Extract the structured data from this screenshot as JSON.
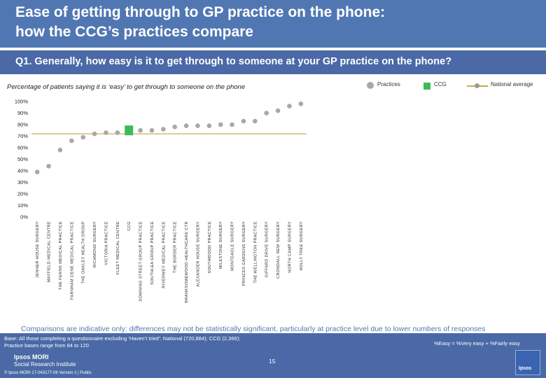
{
  "header": {
    "title_line1": "Ease of getting through to GP practice on the phone:",
    "title_line2": "how the CCG’s practices compare",
    "question": "Q1. Generally, how easy is it to get through to someone at your GP practice on the phone?"
  },
  "chart_subtitle": "Percentage of patients saying it is ‘easy’ to get through to someone on the phone",
  "legend": {
    "practices": "Practices",
    "ccg": "CCG",
    "national": "National average"
  },
  "colors": {
    "header_bg": "#5177b3",
    "practice_dot": "#a8a8a8",
    "ccg_square": "#3cba5a",
    "national_line": "#c4a84d"
  },
  "chart_data": {
    "type": "scatter",
    "title": "",
    "xlabel": "",
    "ylabel": "",
    "ylim": [
      0,
      100
    ],
    "yticks": [
      "0%",
      "10%",
      "20%",
      "30%",
      "40%",
      "50%",
      "60%",
      "70%",
      "80%",
      "90%",
      "100%"
    ],
    "national_average": 72,
    "categories": [
      "JENNER HOUSE SURGERY",
      "MAYFIELD MEDICAL CENTRE",
      "THE FERNS MEDICAL PRACTICE",
      "FARNHAM DENE MEDICAL PRACTICE",
      "THE OAKLEY HEALTH GROUP",
      "RICHMOND SURGERY",
      "VICTORIA PRACTICE",
      "FLEET MEDICAL CENTRE",
      "CCG",
      "DOWNING STREET GROUP PRACTICE",
      "SOUTHLEA GROUP PRACTICE",
      "RIVERWEY MEDICAL PRACTICE",
      "THE BORDER PRACTICE",
      "BRANKSOMEWOOD HEALTHCARE CTR",
      "ALEXANDER HOUSE SURGERY",
      "SOUTHWOOD PRACTICE",
      "MILESTONE SURGERY",
      "MONTEAGLE SURGERY",
      "PRINCES GARDENS SURGERY",
      "THE WELLINGTON PRACTICE",
      "GIFFARD DRIVE SURGERY",
      "CRONDALL NEW SURGERY",
      "NORTH CAMP SURGERY",
      "HOLLY TREE SURGERY"
    ],
    "values": [
      39,
      44,
      58,
      66,
      69,
      72,
      73,
      73,
      75,
      75,
      75,
      76,
      78,
      79,
      79,
      79,
      80,
      80,
      83,
      83,
      90,
      92,
      96,
      98
    ],
    "series_kind": [
      "practice",
      "practice",
      "practice",
      "practice",
      "practice",
      "practice",
      "practice",
      "practice",
      "ccg",
      "practice",
      "practice",
      "practice",
      "practice",
      "practice",
      "practice",
      "practice",
      "practice",
      "practice",
      "practice",
      "practice",
      "practice",
      "practice",
      "practice",
      "practice"
    ]
  },
  "footnote": "Comparisons are indicative only: differences may not be statistically significant, particularly at practice level due to lower numbers of responses",
  "footer": {
    "base_line1": "Base: All those completing a questionnaire excluding ‘Haven’t tried’: National (720,884); CCG (2,366);",
    "base_line2": "Practice bases range from 84 to 120",
    "formula": "%Easy = %Very easy + %Fairly easy",
    "page": "15",
    "logo_line1": "Ipsos MORI",
    "logo_line2": "Social Research Institute",
    "copyright": "© Ipsos MORI     17-043177-06 Version 1 | Public",
    "ipsos_badge": "Ipsos"
  }
}
